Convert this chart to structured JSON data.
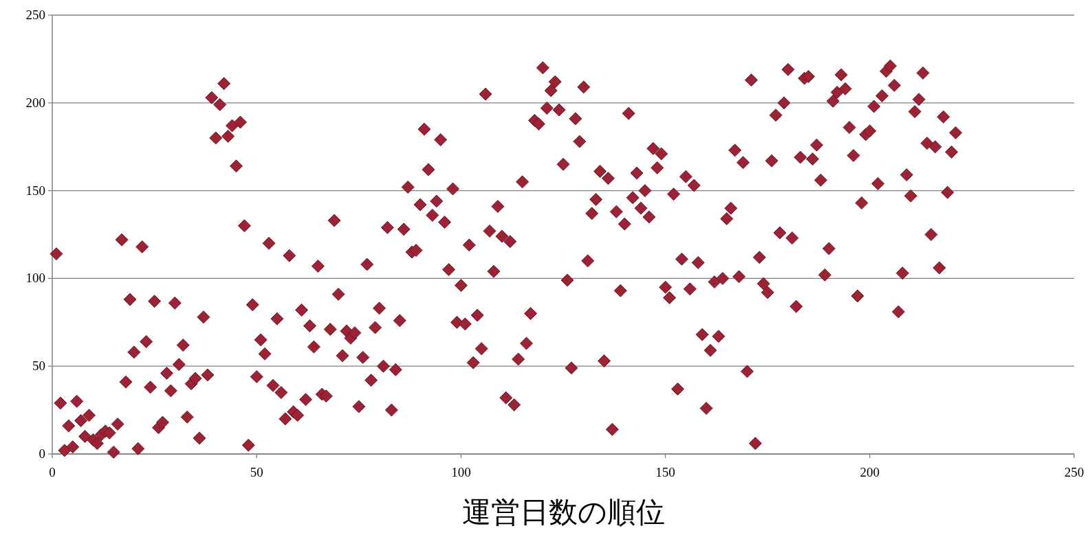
{
  "chart_data": {
    "type": "scatter",
    "xlabel": "運営日数の順位",
    "marker": "diamond",
    "grid": "y",
    "color": "#9b2335",
    "xlim": [
      0,
      250
    ],
    "ylim": [
      0,
      250
    ],
    "xticks": [
      0,
      50,
      100,
      150,
      200,
      250
    ],
    "yticks": [
      0,
      50,
      100,
      150,
      200,
      250
    ],
    "x": [
      1,
      2,
      3,
      4,
      5,
      6,
      7,
      8,
      9,
      10,
      11,
      12,
      13,
      14,
      15,
      16,
      17,
      18,
      19,
      20,
      21,
      22,
      23,
      24,
      25,
      26,
      27,
      28,
      29,
      30,
      31,
      32,
      33,
      34,
      35,
      36,
      37,
      38,
      39,
      40,
      41,
      42,
      43,
      44,
      45,
      46,
      47,
      48,
      49,
      50,
      51,
      52,
      53,
      54,
      55,
      56,
      57,
      58,
      59,
      60,
      61,
      62,
      63,
      64,
      65,
      66,
      67,
      68,
      69,
      70,
      71,
      72,
      73,
      74,
      75,
      76,
      77,
      78,
      79,
      80,
      81,
      82,
      83,
      84,
      85,
      86,
      87,
      88,
      89,
      90,
      91,
      92,
      93,
      94,
      95,
      96,
      97,
      98,
      99,
      100,
      101,
      102,
      103,
      104,
      105,
      106,
      107,
      108,
      109,
      110,
      111,
      112,
      113,
      114,
      115,
      116,
      117,
      118,
      119,
      120,
      121,
      122,
      123,
      124,
      125,
      126,
      127,
      128,
      129,
      130,
      131,
      132,
      133,
      134,
      135,
      136,
      137,
      138,
      139,
      140,
      141,
      142,
      143,
      144,
      145,
      146,
      147,
      148,
      149,
      150,
      151,
      152,
      153,
      154,
      155,
      156,
      157,
      158,
      159,
      160,
      161,
      162,
      163,
      164,
      165,
      166,
      167,
      168,
      169,
      170,
      171,
      172,
      173,
      174,
      175,
      176,
      177,
      178,
      179,
      180,
      181,
      182,
      183,
      184,
      185,
      186,
      187,
      188,
      189,
      190,
      191,
      192,
      193,
      194,
      195,
      196,
      197,
      198,
      199,
      200,
      201,
      202,
      203,
      204,
      205,
      206,
      207,
      208,
      209,
      210,
      211,
      212,
      213,
      214,
      215,
      216,
      217,
      218,
      219,
      220,
      221
    ],
    "values": [
      114,
      29,
      2,
      16,
      4,
      30,
      19,
      10,
      22,
      8,
      6,
      11,
      13,
      12,
      1,
      17,
      122,
      41,
      88,
      58,
      3,
      118,
      64,
      38,
      87,
      15,
      18,
      46,
      36,
      86,
      51,
      62,
      21,
      40,
      43,
      9,
      78,
      45,
      203,
      180,
      199,
      211,
      181,
      187,
      164,
      189,
      130,
      5,
      85,
      44,
      65,
      57,
      120,
      39,
      77,
      35,
      20,
      113,
      24,
      22,
      82,
      31,
      73,
      61,
      107,
      34,
      33,
      71,
      133,
      91,
      56,
      70,
      66,
      69,
      27,
      55,
      108,
      42,
      72,
      83,
      50,
      129,
      25,
      48,
      76,
      128,
      152,
      115,
      116,
      142,
      185,
      162,
      136,
      144,
      179,
      132,
      105,
      151,
      75,
      96,
      74,
      119,
      52,
      79,
      60,
      205,
      127,
      104,
      141,
      124,
      32,
      121,
      28,
      54,
      155,
      63,
      80,
      190,
      188,
      220,
      197,
      207,
      212,
      196,
      165,
      99,
      49,
      191,
      178,
      209,
      110,
      137,
      145,
      161,
      53,
      157,
      14,
      138,
      93,
      131,
      194,
      146,
      160,
      140,
      150,
      135,
      174,
      163,
      171,
      95,
      89,
      148,
      37,
      111,
      158,
      94,
      153,
      109,
      68,
      26,
      59,
      98,
      67,
      100,
      134,
      140,
      173,
      101,
      166,
      47,
      213,
      6,
      112,
      97,
      92,
      167,
      193,
      126,
      200,
      219,
      123,
      84,
      169,
      214,
      215,
      168,
      176,
      156,
      102,
      117,
      201,
      206,
      216,
      208,
      186,
      170,
      90,
      143,
      182,
      184,
      198,
      154,
      204,
      218,
      221,
      210,
      81,
      103,
      159,
      147,
      195,
      202,
      217,
      177,
      125,
      175,
      106,
      192,
      149,
      172,
      183
    ]
  }
}
